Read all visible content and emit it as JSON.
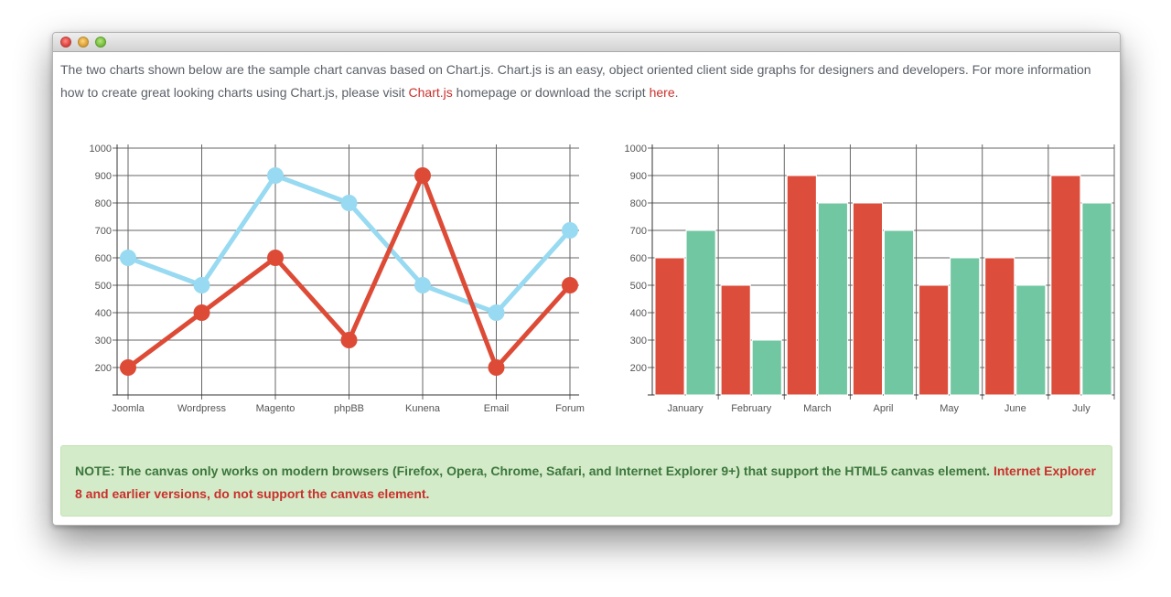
{
  "intro": {
    "text_before": "The two charts shown below are the sample chart canvas based on Chart.js. Chart.js is an easy, object oriented client side graphs for designers and developers. For more information how to create great looking charts using Chart.js, please visit ",
    "link1": "Chart.js",
    "text_middle": " homepage or download the script ",
    "link2": "here",
    "text_end": "."
  },
  "note": {
    "text": "NOTE: The canvas only works on modern browsers (Firefox, Opera, Chrome, Safari, and Internet Explorer 9+) that support the HTML5 canvas element. ",
    "warning": "Internet Explorer 8 and earlier versions, do not support the canvas element."
  },
  "colors": {
    "blue_series": "#97daf1",
    "red_series": "#dd4b37",
    "red_bar": "#dc4d3c",
    "green_bar": "#71c7a1",
    "grid": "#666666"
  },
  "chart_data": [
    {
      "type": "line",
      "categories": [
        "Joomla",
        "Wordpress",
        "Magento",
        "phpBB",
        "Kunena",
        "Email",
        "Forum"
      ],
      "y_ticks": [
        200,
        300,
        400,
        500,
        600,
        700,
        800,
        900,
        1000
      ],
      "ylim": [
        100,
        1000
      ],
      "grid": true,
      "series": [
        {
          "values": [
            600,
            500,
            900,
            800,
            500,
            400,
            700
          ],
          "color": "#97daf1"
        },
        {
          "values": [
            200,
            400,
            600,
            300,
            900,
            200,
            500
          ],
          "color": "#dd4b37"
        }
      ]
    },
    {
      "type": "bar",
      "categories": [
        "January",
        "February",
        "March",
        "April",
        "May",
        "June",
        "July"
      ],
      "y_ticks": [
        200,
        300,
        400,
        500,
        600,
        700,
        800,
        900,
        1000
      ],
      "ylim": [
        100,
        1000
      ],
      "grid": true,
      "series": [
        {
          "values": [
            600,
            500,
            900,
            800,
            500,
            600,
            900
          ],
          "color": "#dc4d3c"
        },
        {
          "values": [
            700,
            300,
            800,
            700,
            600,
            500,
            800
          ],
          "color": "#71c7a1"
        }
      ]
    }
  ]
}
